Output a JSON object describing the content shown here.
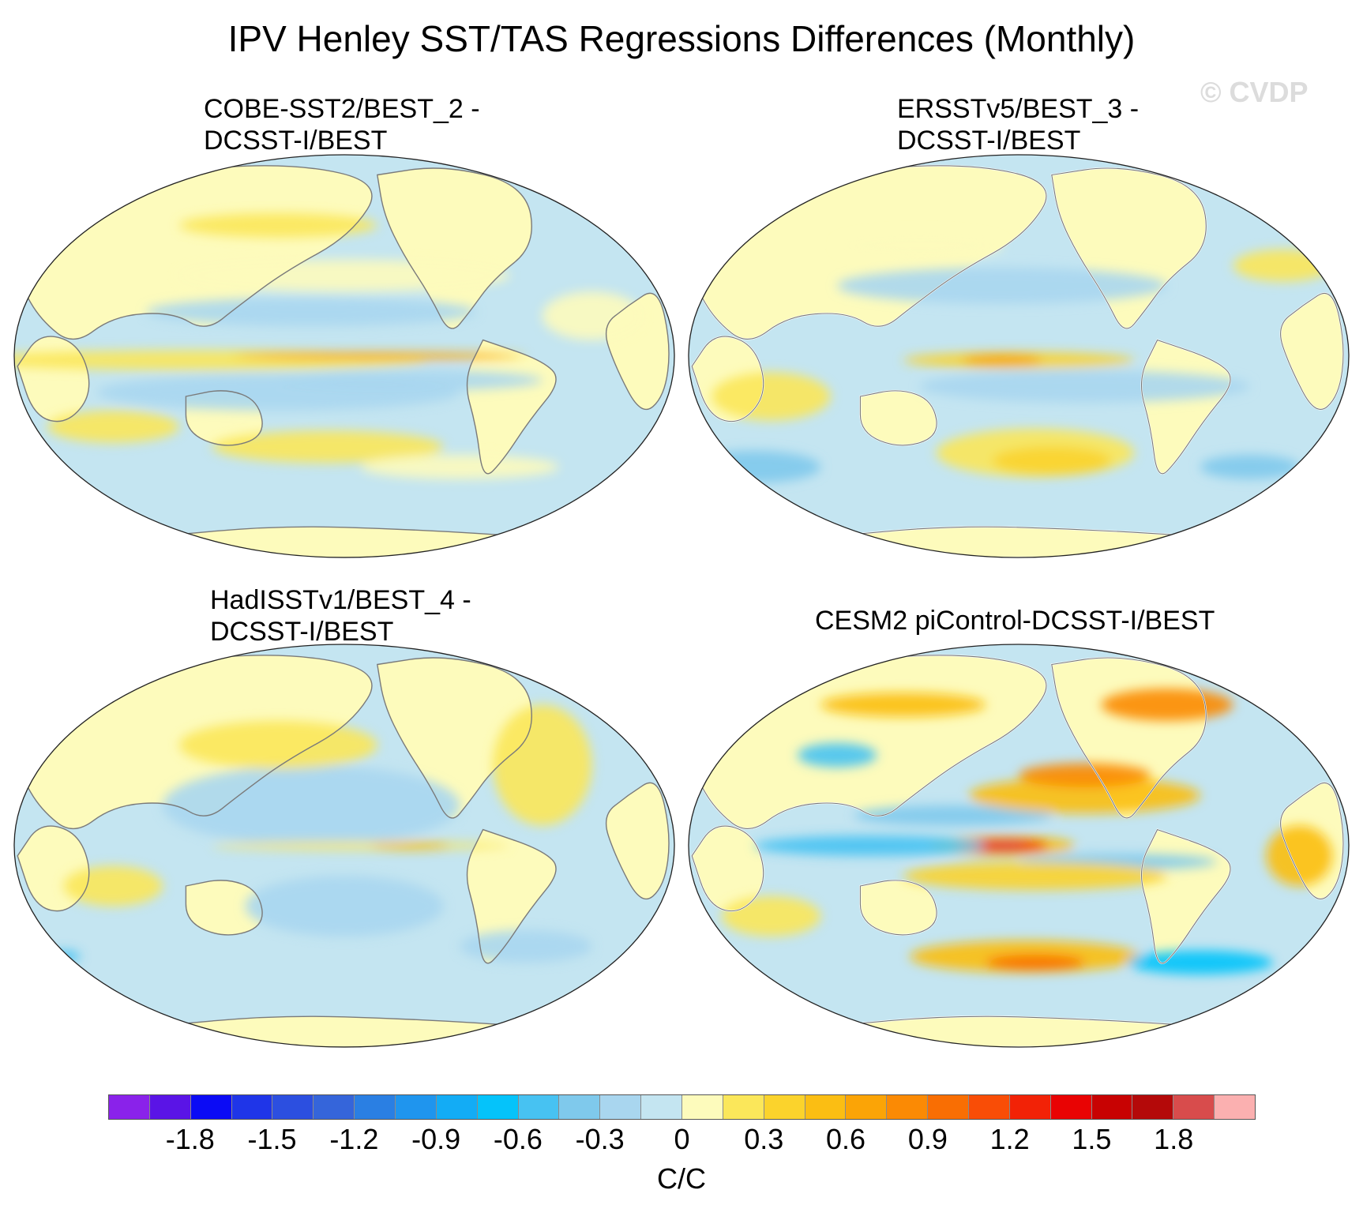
{
  "figure": {
    "title": "IPV Henley SST/TAS Regressions Differences (Monthly)",
    "watermark": "© CVDP"
  },
  "panels": [
    {
      "title": "COBE-SST2/BEST_2 -\nDCSST-I/BEST",
      "scheme": "weak-alt"
    },
    {
      "title": "ERSSTv5/BEST_3 -\nDCSST-I/BEST",
      "scheme": "weak-warm"
    },
    {
      "title": "HadISSTv1/BEST_4 -\nDCSST-I/BEST",
      "scheme": "weak-noisy"
    },
    {
      "title": "CESM2 piControl-DCSST-I/BEST",
      "scheme": "strong"
    }
  ],
  "colorbar": {
    "unit": "C/C",
    "colors": [
      "#8a22ea",
      "#5a14e6",
      "#0b0bf5",
      "#1f35e8",
      "#2c4fe0",
      "#3565da",
      "#2a7fe3",
      "#1f95ee",
      "#13acf5",
      "#05c3fa",
      "#47c2f2",
      "#7fc9ec",
      "#a9d6ef",
      "#c4e5f1",
      "#fdfbbc",
      "#fbe75a",
      "#fbd32c",
      "#fbbe13",
      "#fba406",
      "#fb8a04",
      "#f96e03",
      "#f94d06",
      "#f22206",
      "#e90303",
      "#c80202",
      "#b40909",
      "#d84c4c",
      "#fbb0b0"
    ],
    "tick_labels": [
      "-1.8",
      "-1.5",
      "-1.2",
      "-0.9",
      "-0.6",
      "-0.3",
      "0",
      "0.3",
      "0.6",
      "0.9",
      "1.2",
      "1.5",
      "1.8"
    ]
  }
}
